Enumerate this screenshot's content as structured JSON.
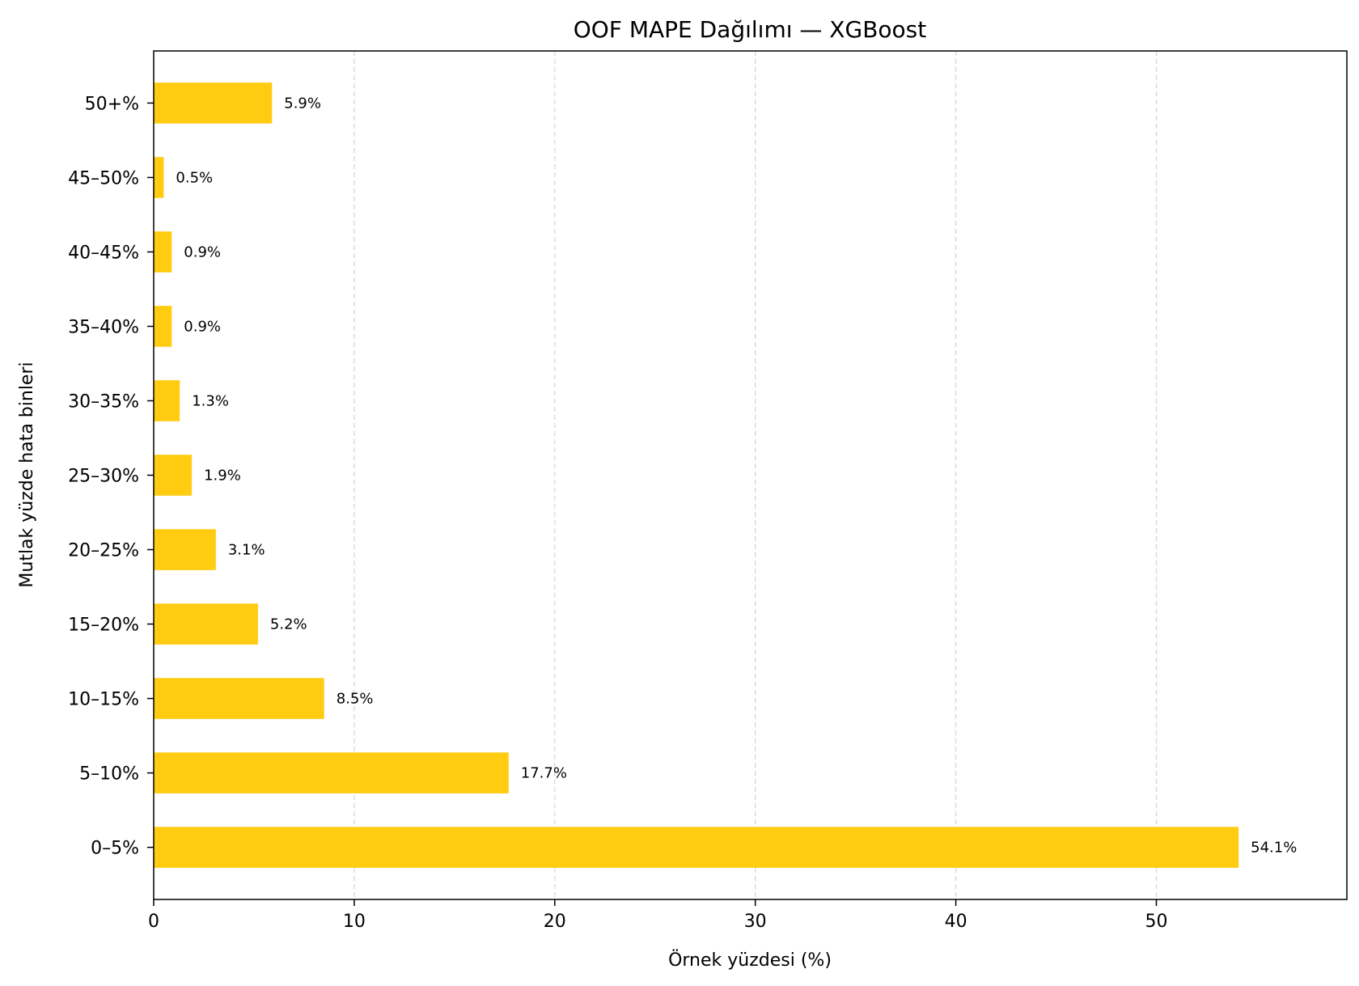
{
  "chart_data": {
    "type": "bar",
    "orientation": "horizontal",
    "title": "OOF MAPE Dağılımı — XGBoost",
    "xlabel": "Örnek yüzdesi (%)",
    "ylabel": "Mutlak yüzde hata binleri",
    "categories": [
      "0–5%",
      "5–10%",
      "10–15%",
      "15–20%",
      "20–25%",
      "25–30%",
      "30–35%",
      "35–40%",
      "40–45%",
      "45–50%",
      "50+%"
    ],
    "values": [
      54.1,
      17.7,
      8.5,
      5.2,
      3.1,
      1.9,
      1.3,
      0.9,
      0.9,
      0.5,
      5.9
    ],
    "value_labels": [
      "54.1%",
      "17.7%",
      "8.5%",
      "5.2%",
      "3.1%",
      "1.9%",
      "1.3%",
      "0.9%",
      "0.9%",
      "0.5%",
      "5.9%"
    ],
    "xlim": [
      0,
      59.5
    ],
    "xticks": [
      0,
      10,
      20,
      30,
      40,
      50
    ],
    "xtick_labels": [
      "0",
      "10",
      "20",
      "30",
      "40",
      "50"
    ],
    "grid": "x-dashed",
    "bar_color": "#FFCC11"
  }
}
